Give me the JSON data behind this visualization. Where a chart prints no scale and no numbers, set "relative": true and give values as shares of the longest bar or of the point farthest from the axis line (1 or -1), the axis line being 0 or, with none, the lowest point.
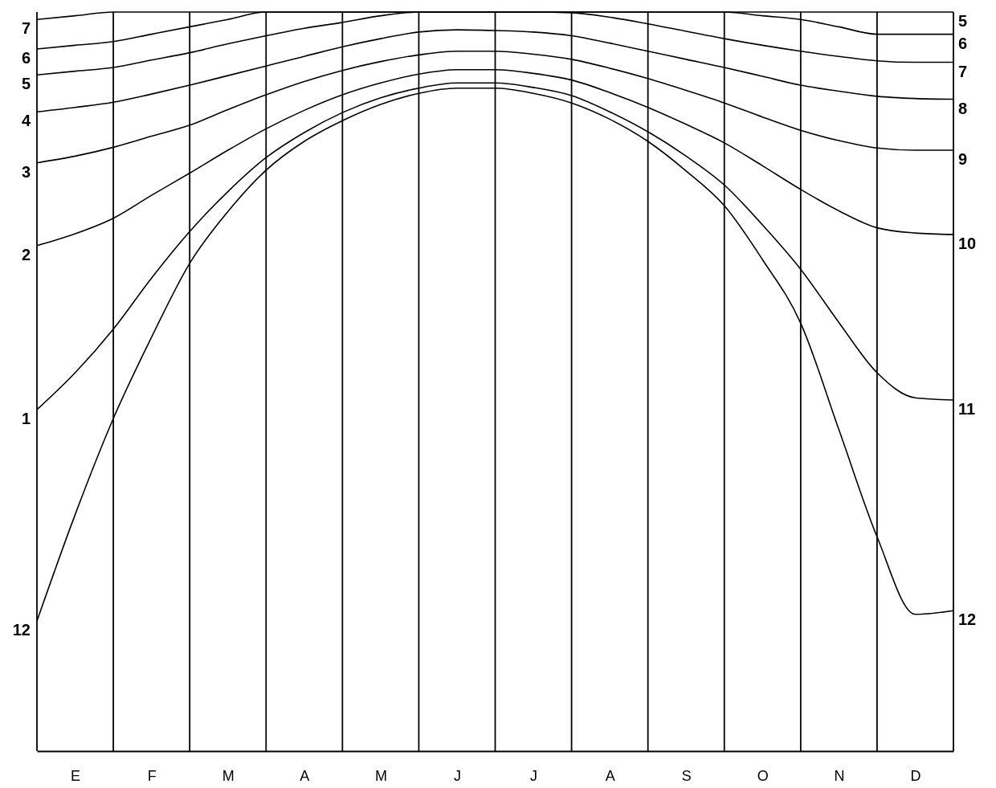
{
  "chart_data": {
    "type": "line",
    "relative": true,
    "grid": "x",
    "marker": "none",
    "line_style": "solid",
    "categories": [
      null,
      "E",
      null,
      "F",
      null,
      "M",
      null,
      "A",
      null,
      "M",
      null,
      "J",
      null,
      "J",
      null,
      "A",
      null,
      "S",
      null,
      "O",
      null,
      "N",
      null,
      "D",
      null
    ],
    "series": [
      {
        "name": "7",
        "color": "#000000",
        "values": [
          0.99,
          0.995,
          1,
          1,
          1,
          1,
          1,
          1,
          1,
          1,
          1,
          1,
          1,
          1,
          1,
          1,
          1,
          1,
          1,
          1,
          1,
          1,
          1,
          1,
          1
        ]
      },
      {
        "name": "6",
        "color": "#000000",
        "values": [
          0.95,
          0.955,
          0.96,
          0.97,
          0.98,
          0.99,
          1,
          1,
          1,
          1,
          1,
          1,
          1,
          1,
          1,
          1,
          1,
          1,
          1,
          0.995,
          0.99,
          0.98,
          0.97,
          0.97,
          0.97
        ]
      },
      {
        "name": "5",
        "color": "#000000",
        "values": [
          0.915,
          0.92,
          0.925,
          0.935,
          0.945,
          0.957,
          0.968,
          0.978,
          0.986,
          0.995,
          1,
          1,
          1,
          1,
          0.999,
          0.993,
          0.984,
          0.974,
          0.964,
          0.955,
          0.947,
          0.94,
          0.934,
          0.932,
          0.932
        ]
      },
      {
        "name": "4",
        "color": "#000000",
        "values": [
          0.865,
          0.871,
          0.878,
          0.889,
          0.901,
          0.914,
          0.927,
          0.94,
          0.953,
          0.964,
          0.973,
          0.976,
          0.975,
          0.973,
          0.968,
          0.958,
          0.947,
          0.936,
          0.925,
          0.913,
          0.901,
          0.893,
          0.886,
          0.883,
          0.882
        ]
      },
      {
        "name": "3",
        "color": "#000000",
        "values": [
          0.796,
          0.805,
          0.817,
          0.832,
          0.847,
          0.868,
          0.888,
          0.906,
          0.921,
          0.933,
          0.942,
          0.947,
          0.947,
          0.943,
          0.936,
          0.924,
          0.91,
          0.894,
          0.877,
          0.858,
          0.84,
          0.826,
          0.816,
          0.813,
          0.813
        ]
      },
      {
        "name": "2",
        "color": "#000000",
        "values": [
          0.684,
          0.7,
          0.721,
          0.752,
          0.782,
          0.813,
          0.842,
          0.867,
          0.888,
          0.904,
          0.916,
          0.922,
          0.922,
          0.917,
          0.908,
          0.891,
          0.871,
          0.848,
          0.823,
          0.792,
          0.76,
          0.731,
          0.708,
          0.701,
          0.699
        ]
      },
      {
        "name": "1",
        "color": "#000000",
        "values": [
          0.462,
          0.512,
          0.571,
          0.64,
          0.703,
          0.757,
          0.803,
          0.837,
          0.864,
          0.884,
          0.897,
          0.904,
          0.904,
          0.898,
          0.887,
          0.865,
          0.838,
          0.805,
          0.766,
          0.712,
          0.652,
          0.58,
          0.512,
          0.478,
          0.475
        ]
      },
      {
        "name": "12",
        "color": "#000000",
        "values": [
          0.176,
          0.32,
          0.45,
          0.56,
          0.66,
          0.73,
          0.786,
          0.825,
          0.853,
          0.875,
          0.89,
          0.897,
          0.897,
          0.89,
          0.877,
          0.855,
          0.825,
          0.785,
          0.738,
          0.665,
          0.579,
          0.435,
          0.29,
          0.185,
          0.19
        ]
      }
    ],
    "annotations": [
      "5",
      "6",
      "7",
      "8",
      "9",
      "10",
      "11",
      "12"
    ]
  }
}
